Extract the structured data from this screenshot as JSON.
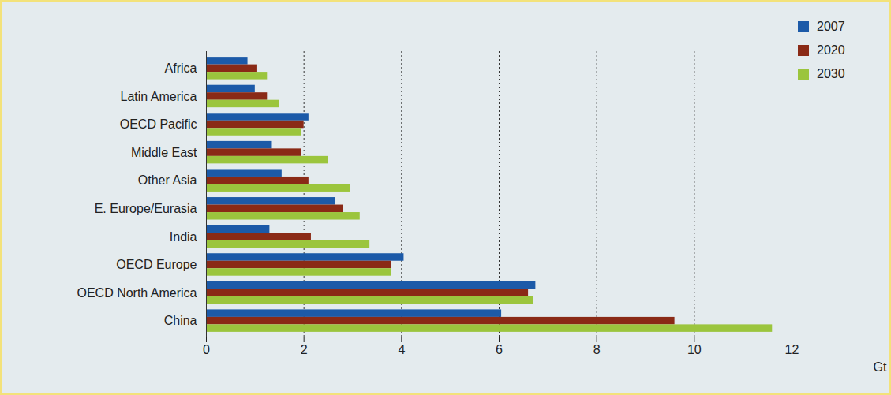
{
  "chart_data": {
    "type": "bar",
    "orientation": "horizontal",
    "xlabel": "Gt",
    "categories": [
      "Africa",
      "Latin America",
      "OECD Pacific",
      "Middle East",
      "Other Asia",
      "E. Europe/Eurasia",
      "India",
      "OECD Europe",
      "OECD North America",
      "China"
    ],
    "series": [
      {
        "name": "2007",
        "color": "#1c5aa8",
        "values": [
          0.85,
          1.0,
          2.1,
          1.35,
          1.55,
          2.65,
          1.3,
          4.05,
          6.75,
          6.05
        ]
      },
      {
        "name": "2020",
        "color": "#8a2a16",
        "values": [
          1.05,
          1.25,
          2.0,
          1.95,
          2.1,
          2.8,
          2.15,
          3.8,
          6.6,
          9.6
        ]
      },
      {
        "name": "2030",
        "color": "#9bc53d",
        "values": [
          1.25,
          1.5,
          1.95,
          2.5,
          2.95,
          3.15,
          3.35,
          3.8,
          6.7,
          11.6
        ]
      }
    ],
    "xlim": [
      0,
      12
    ],
    "xticks": [
      0,
      2,
      4,
      6,
      8,
      10,
      12
    ],
    "grid": true,
    "legend": "top-right"
  }
}
